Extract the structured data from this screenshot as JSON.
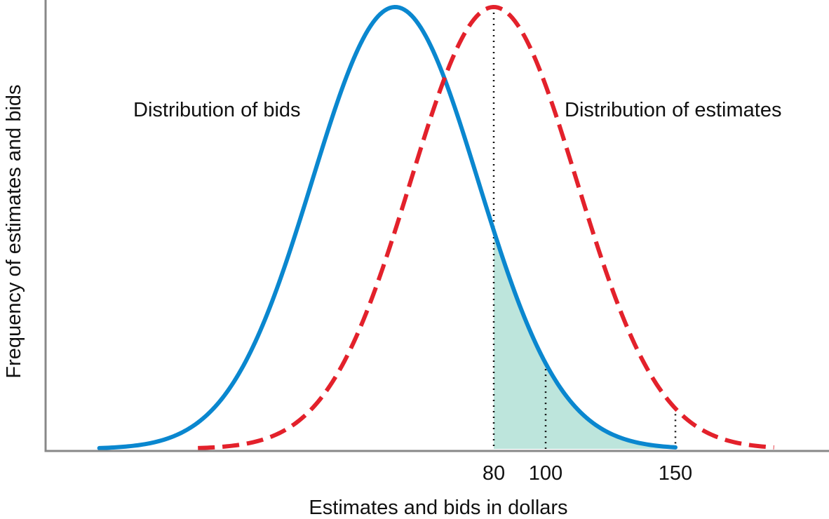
{
  "chart_data": {
    "type": "line",
    "title": "",
    "xlabel": "Estimates and bids in dollars",
    "ylabel": "Frequency of estimates and bids",
    "x_tick_labels": [
      "80",
      "100",
      "150"
    ],
    "series": [
      {
        "name": "Distribution of bids",
        "line_style": "solid",
        "color": "#0a87cf",
        "distribution": "normal",
        "mean": 42,
        "sd": 32,
        "x_range": [
          -72,
          150
        ]
      },
      {
        "name": "Distribution of estimates",
        "line_style": "dashed",
        "color": "#e3212b",
        "distribution": "normal",
        "mean": 80,
        "sd": 32,
        "x_range": [
          -34,
          188
        ]
      }
    ],
    "annotations": [
      {
        "type": "shaded-area",
        "series": "Distribution of bids",
        "from_x": 80,
        "to_x": 150,
        "color": "#bde5dc"
      },
      {
        "type": "dotted-vertical-line",
        "x": 80
      },
      {
        "type": "dotted-vertical-line",
        "x": 100
      },
      {
        "type": "dotted-vertical-line",
        "x": 150
      }
    ],
    "grid": false,
    "legend": "none"
  }
}
